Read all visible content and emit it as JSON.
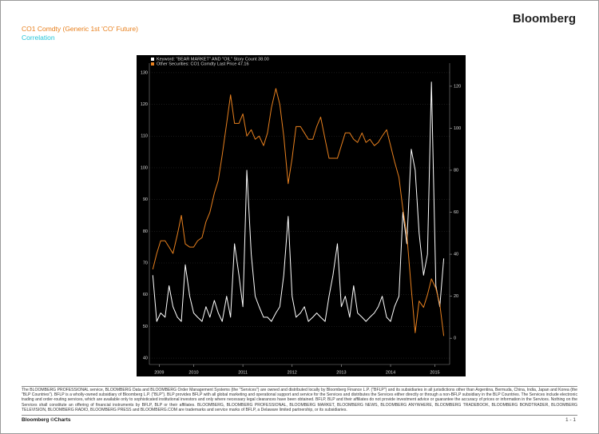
{
  "header": {
    "brand": "Bloomberg",
    "title": "CO1 Comdty (Generic 1st 'CO' Future)",
    "subtitle": "Correlation"
  },
  "chart_data": {
    "type": "line",
    "x": [
      2009.67,
      2009.75,
      2009.83,
      2009.92,
      2010.0,
      2010.08,
      2010.17,
      2010.25,
      2010.33,
      2010.42,
      2010.5,
      2010.58,
      2010.67,
      2010.75,
      2010.83,
      2010.92,
      2011.0,
      2011.08,
      2011.17,
      2011.25,
      2011.33,
      2011.42,
      2011.5,
      2011.58,
      2011.67,
      2011.75,
      2011.83,
      2011.92,
      2012.0,
      2012.08,
      2012.17,
      2012.25,
      2012.33,
      2012.42,
      2012.5,
      2012.58,
      2012.67,
      2012.75,
      2012.83,
      2012.92,
      2013.0,
      2013.08,
      2013.17,
      2013.25,
      2013.33,
      2013.42,
      2013.5,
      2013.58,
      2013.67,
      2013.75,
      2013.83,
      2013.92,
      2014.0,
      2014.08,
      2014.17,
      2014.25,
      2014.33,
      2014.42,
      2014.5,
      2014.58,
      2014.67,
      2014.75,
      2014.83,
      2014.92,
      2015.0,
      2015.08,
      2015.17,
      2015.25,
      2015.33,
      2015.42,
      2015.5,
      2015.58
    ],
    "series": [
      {
        "name": "Keyword: \"BEAR MARKET\" AND \"OIL\" Story Count 38.00",
        "color": "#ffffff",
        "axis": "y2",
        "values": [
          30,
          8,
          12,
          10,
          25,
          15,
          10,
          8,
          35,
          20,
          12,
          10,
          8,
          15,
          10,
          18,
          12,
          8,
          20,
          10,
          45,
          30,
          15,
          80,
          40,
          20,
          15,
          10,
          10,
          8,
          12,
          15,
          30,
          58,
          20,
          10,
          12,
          15,
          8,
          10,
          12,
          10,
          8,
          20,
          30,
          45,
          15,
          20,
          10,
          25,
          12,
          10,
          8,
          10,
          12,
          15,
          20,
          10,
          8,
          15,
          20,
          60,
          45,
          90,
          80,
          50,
          30,
          40,
          122,
          25,
          15,
          38
        ]
      },
      {
        "name": "Other Securities: CO1 Comdty Last Price 47.16",
        "color": "#e8801e",
        "values": [
          68,
          73,
          77,
          77,
          75,
          73,
          79,
          85,
          76,
          75,
          75,
          77,
          78,
          83,
          86,
          92,
          96,
          104,
          114,
          123,
          114,
          114,
          117,
          110,
          112,
          109,
          110,
          107,
          111,
          119,
          125,
          120,
          110,
          95,
          103,
          113,
          113,
          111,
          109,
          109,
          113,
          116,
          109,
          103,
          103,
          103,
          107,
          111,
          111,
          109,
          108,
          111,
          108,
          109,
          107,
          108,
          110,
          112,
          107,
          102,
          97,
          87,
          79,
          62,
          48,
          58,
          56,
          60,
          65,
          62,
          57,
          47
        ]
      }
    ],
    "xlim": [
      2009.6,
      2015.7
    ],
    "xticks": [
      {
        "value": 2009.8,
        "label": "2009"
      },
      {
        "value": 2010.5,
        "label": "2010"
      },
      {
        "value": 2011.5,
        "label": "2011"
      },
      {
        "value": 2012.5,
        "label": "2012"
      },
      {
        "value": 2013.5,
        "label": "2013"
      },
      {
        "value": 2014.5,
        "label": "2014"
      },
      {
        "value": 2015.4,
        "label": "2015"
      }
    ],
    "ylim": [
      38,
      133
    ],
    "yticks": [
      40,
      50,
      60,
      70,
      80,
      90,
      100,
      110,
      120,
      130
    ],
    "y2lim": [
      -12.5,
      131
    ],
    "y2ticks": [
      0,
      20,
      40,
      60,
      80,
      100,
      120
    ],
    "grid": true
  },
  "footer": {
    "disclaimer": "The BLOOMBERG PROFESSIONAL service, BLOOMBERG Data and BLOOMBERG Order Management Systems (the \"Services\") are owned and distributed locally by Bloomberg Finance L.P. (\"BFLP\") and its subsidiaries in all jurisdictions other than Argentina, Bermuda, China, India, Japan and Korea (the \"BLP Countries\"). BFLP is a wholly-owned subsidiary of Bloomberg L.P. (\"BLP\"). BLP provides BFLP with all global marketing and operational support and service for the Services and distributes the Services either directly or through a non-BFLP subsidiary in the BLP Countries. The Services include electronic trading and order-routing services, which are available only to sophisticated institutional investors and only where necessary legal clearances have been obtained. BFLP, BLP and their affiliates do not provide investment advice or guarantee the accuracy of prices or information in the Services. Nothing on the Services shall constitute an offering of financial instruments by BFLP, BLP or their affiliates. BLOOMBERG, BLOOMBERG PROFESSIONAL, BLOOMBERG MARKET, BLOOMBERG NEWS, BLOOMBERG ANYWHERE, BLOOMBERG TRADEBOOK, BLOOMBERG BONDTRADER, BLOOMBERG TELEVISION, BLOOMBERG RADIO, BLOOMBERG PRESS and BLOOMBERG.COM are trademarks and service marks of BFLP, a Delaware limited partnership, or its subsidiaries.",
    "brand": "Bloomberg ©Charts",
    "page": "1 - 1"
  }
}
